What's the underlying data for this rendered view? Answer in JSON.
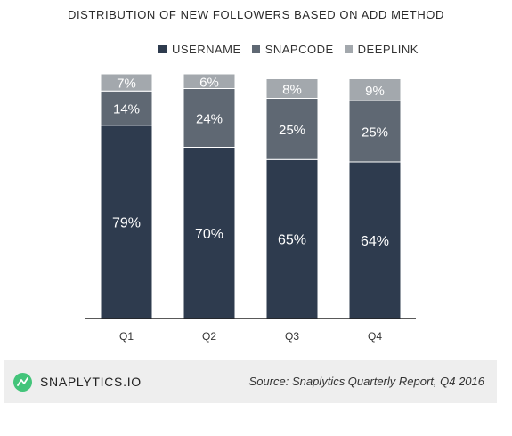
{
  "chart_data": {
    "type": "bar",
    "stacked": true,
    "title": "DISTRIBUTION OF NEW FOLLOWERS BASED ON ADD METHOD",
    "categories": [
      "Q1",
      "Q2",
      "Q3",
      "Q4"
    ],
    "series": [
      {
        "name": "USERNAME",
        "values": [
          79,
          70,
          65,
          64
        ],
        "color": "#2e3b4e"
      },
      {
        "name": "SNAPCODE",
        "values": [
          14,
          24,
          25,
          25
        ],
        "color": "#5f6873"
      },
      {
        "name": "DEEPLINK",
        "values": [
          7,
          6,
          8,
          9
        ],
        "color": "#a3a8ad"
      }
    ],
    "value_suffix": "%",
    "ylim": [
      0,
      100
    ],
    "grid": false,
    "legend_position": "top"
  },
  "footer": {
    "brand": "SNAPLYTICS.IO",
    "source": "Source: Snaplytics Quarterly Report, Q4 2016",
    "brand_color": "#43c47a",
    "logo_icon": "snaplytics-logo-icon"
  }
}
